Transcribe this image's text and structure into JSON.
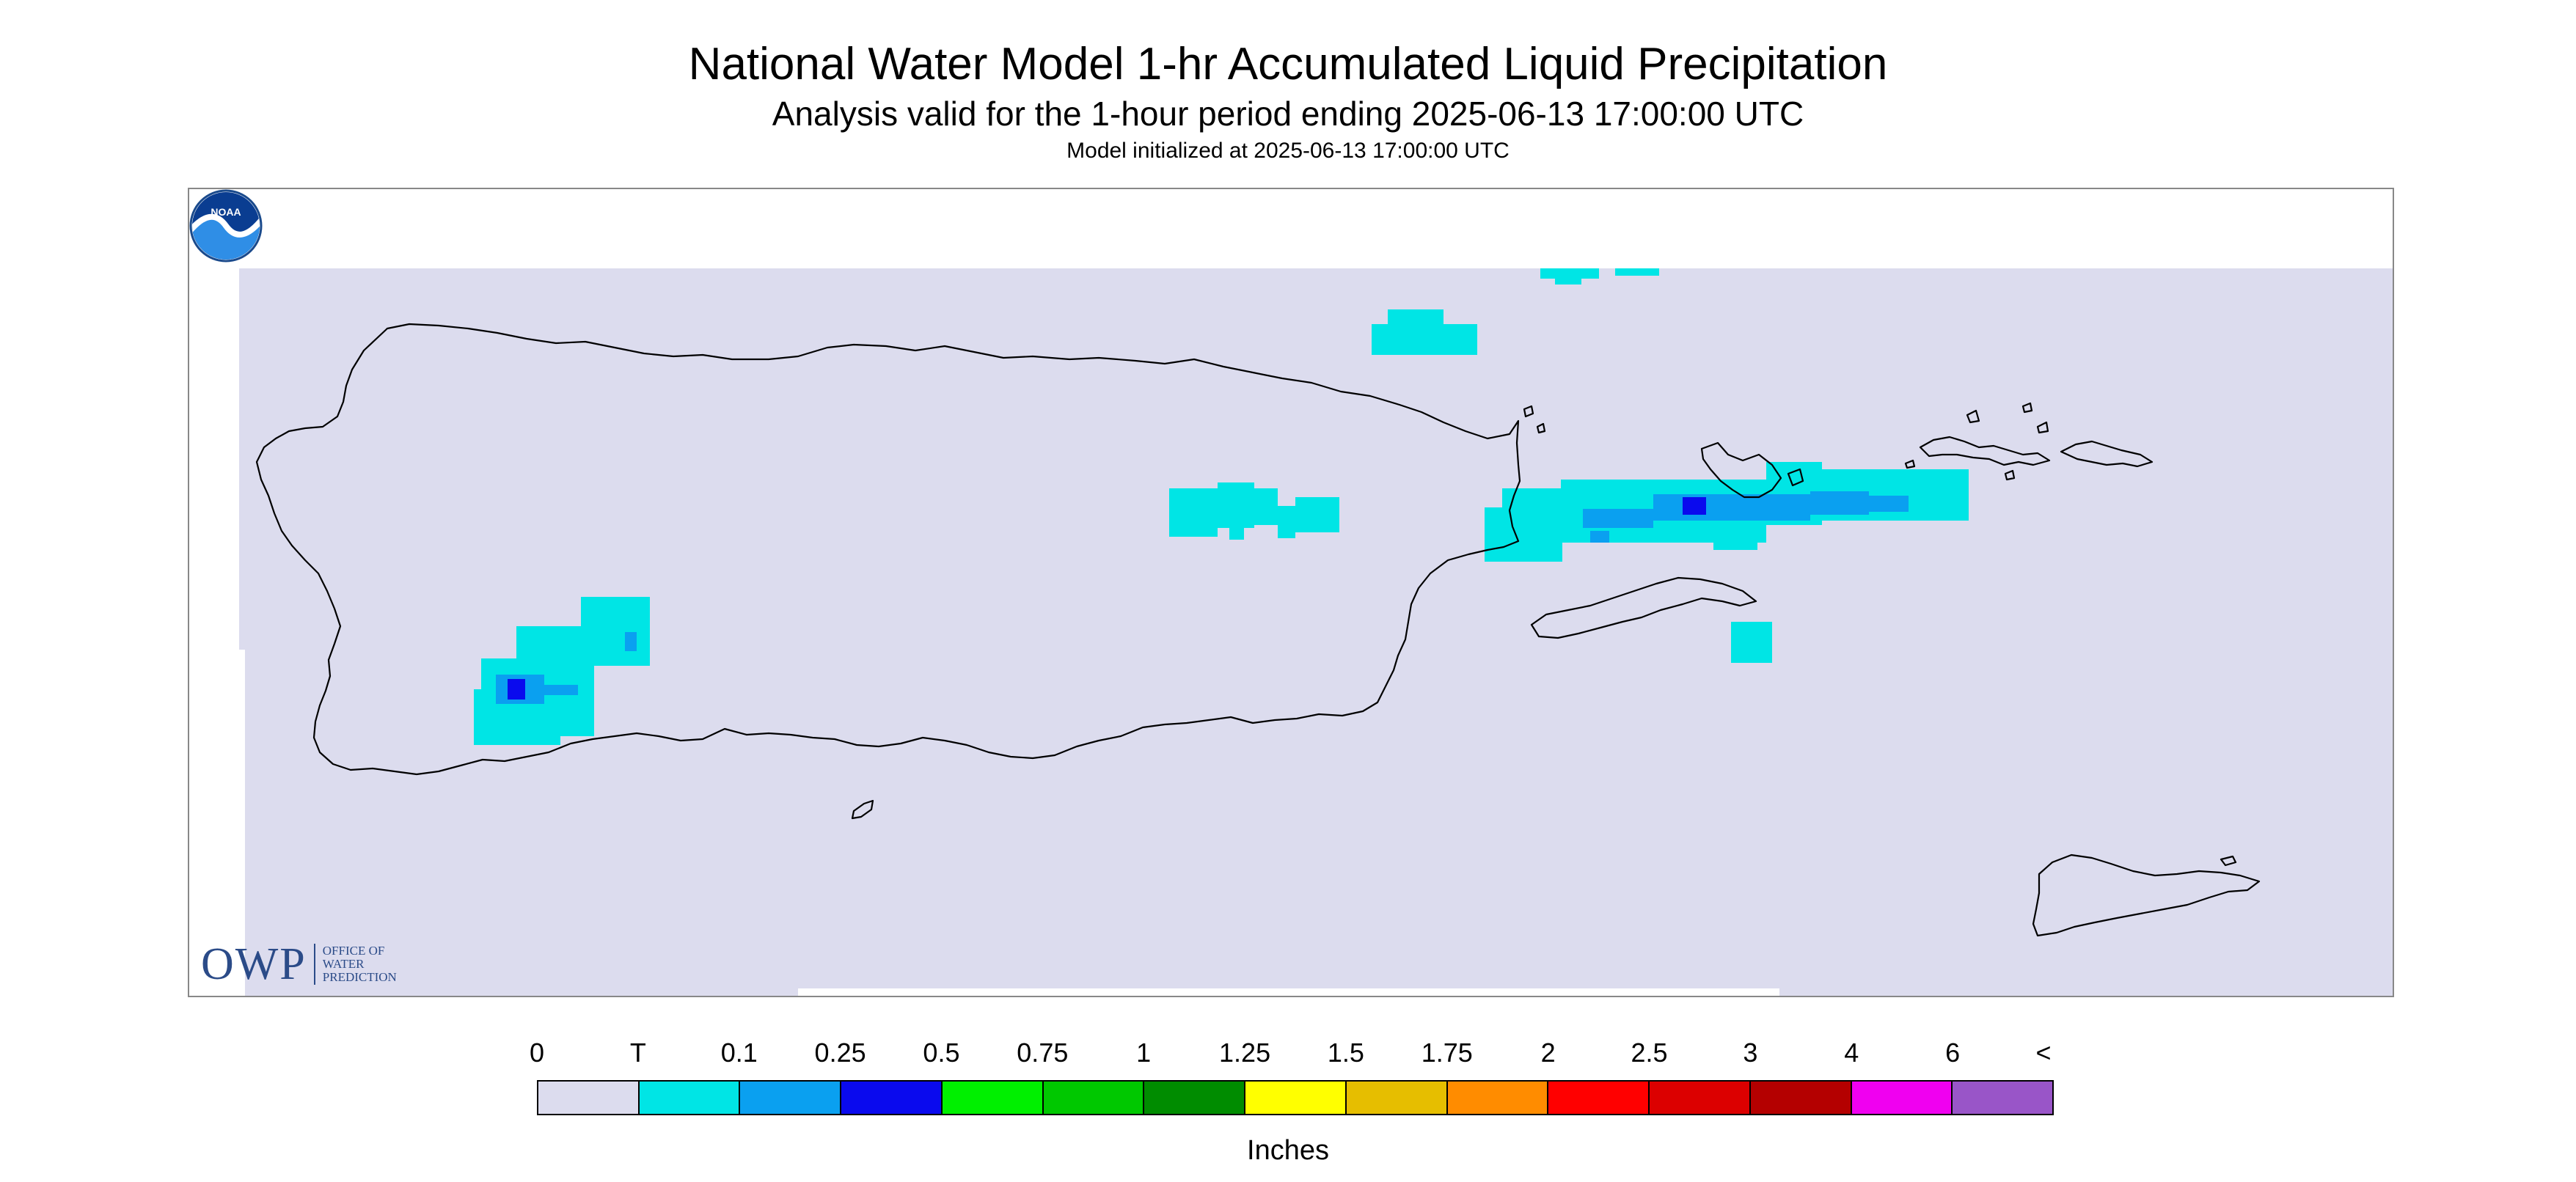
{
  "header": {
    "title": "National Water Model 1-hr Accumulated Liquid Precipitation",
    "subtitle": "Analysis valid for the 1-hour period ending 2025-06-13 17:00:00 UTC",
    "init": "Model initialized at 2025-06-13 17:00:00 UTC"
  },
  "map": {
    "background_color": "#dcdcee",
    "outline_color": "#000000",
    "precip_areas": [
      {
        "area": "west-puerto-rico",
        "level": "T"
      },
      {
        "area": "central-puerto-rico",
        "level": "T"
      },
      {
        "area": "east-culebra-passage",
        "level": "0.25"
      },
      {
        "area": "north-offshore",
        "level": "T"
      },
      {
        "area": "south-vieques",
        "level": "T"
      }
    ]
  },
  "logos": {
    "owp": {
      "letters": "OWP",
      "line1": "OFFICE OF",
      "line2": "WATER",
      "line3": "PREDICTION"
    },
    "noaa": {
      "text": "NOAA"
    }
  },
  "legend": {
    "labels": [
      "0",
      "T",
      "0.1",
      "0.25",
      "0.5",
      "0.75",
      "1",
      "1.25",
      "1.5",
      "1.75",
      "2",
      "2.5",
      "3",
      "4",
      "6",
      "<"
    ],
    "colors": [
      "#dcdcee",
      "#00e5e5",
      "#0aa0f0",
      "#0a0aee",
      "#00f000",
      "#00c800",
      "#008c00",
      "#ffff00",
      "#e6be00",
      "#ff8c00",
      "#ff0000",
      "#dc0000",
      "#b40000",
      "#f000f0",
      "#9955c8"
    ],
    "units": "Inches"
  }
}
